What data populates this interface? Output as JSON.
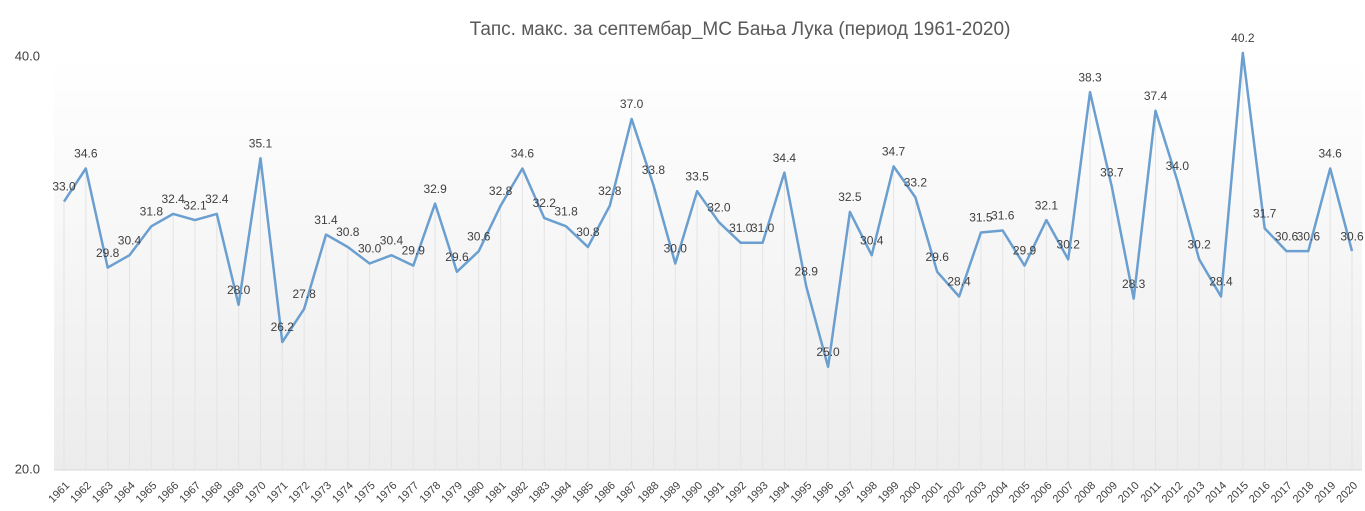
{
  "chart_data": {
    "type": "line",
    "title": "Тапс. макс. за септембар_МС Бања Лука (период 1961-2020)",
    "categories": [
      "1961",
      "1962",
      "1963",
      "1964",
      "1965",
      "1966",
      "1967",
      "1968",
      "1969",
      "1970",
      "1971",
      "1972",
      "1973",
      "1974",
      "1975",
      "1976",
      "1977",
      "1978",
      "1979",
      "1980",
      "1981",
      "1982",
      "1983",
      "1984",
      "1985",
      "1986",
      "1987",
      "1988",
      "1989",
      "1990",
      "1991",
      "1992",
      "1993",
      "1994",
      "1995",
      "1996",
      "1997",
      "1998",
      "1999",
      "2000",
      "2001",
      "2002",
      "2003",
      "2004",
      "2005",
      "2006",
      "2007",
      "2008",
      "2009",
      "2010",
      "2011",
      "2012",
      "2013",
      "2014",
      "2015",
      "2016",
      "2017",
      "2018",
      "2019",
      "2020"
    ],
    "values": [
      33.0,
      34.6,
      29.8,
      30.4,
      31.8,
      32.4,
      32.1,
      32.4,
      28.0,
      35.1,
      26.2,
      27.8,
      31.4,
      30.8,
      30.0,
      30.4,
      29.9,
      32.9,
      29.6,
      30.6,
      32.8,
      34.6,
      32.2,
      31.8,
      30.8,
      32.8,
      37.0,
      33.8,
      30.0,
      33.5,
      32.0,
      31.0,
      31.0,
      34.4,
      28.9,
      25.0,
      32.5,
      30.4,
      34.7,
      33.2,
      29.6,
      28.4,
      31.5,
      31.6,
      29.9,
      32.1,
      30.2,
      38.3,
      33.7,
      28.3,
      37.4,
      34.0,
      30.2,
      28.4,
      40.2,
      31.7,
      30.6,
      30.6,
      34.6,
      30.6
    ],
    "value_labels": [
      "33.0",
      "34.6",
      "29.8",
      "30.4",
      "31.8",
      "32.4",
      "32.1",
      "32.4",
      "28.0",
      "35.1",
      "26.2",
      "27.8",
      "31.4",
      "30.8",
      "30.0",
      "30.4",
      "29.9",
      "32.9",
      "29.6",
      "30.6",
      "32.8",
      "34.6",
      "32.2",
      "31.8",
      "30.8",
      "32.8",
      "37.0",
      "33.8",
      "30.0",
      "33.5",
      "32.0",
      "31.0",
      "31.0",
      "34.4",
      "28.9",
      "25.0",
      "32.5",
      "30.4",
      "34.7",
      "33.2",
      "29.6",
      "28.4",
      "31.5",
      "31.6",
      "29.9",
      "32.1",
      "30.2",
      "38.3",
      "33.7",
      "28.3",
      "37.4",
      "34.0",
      "30.2",
      "28.4",
      "40.2",
      "31.7",
      "30.6",
      "30.6",
      "34.6",
      "30.6"
    ],
    "color": "#6a9fd0",
    "ylim": [
      20,
      40
    ],
    "yticks": [
      {
        "value": 20,
        "label": "20.0"
      },
      {
        "value": 40,
        "label": "40.0"
      }
    ]
  }
}
